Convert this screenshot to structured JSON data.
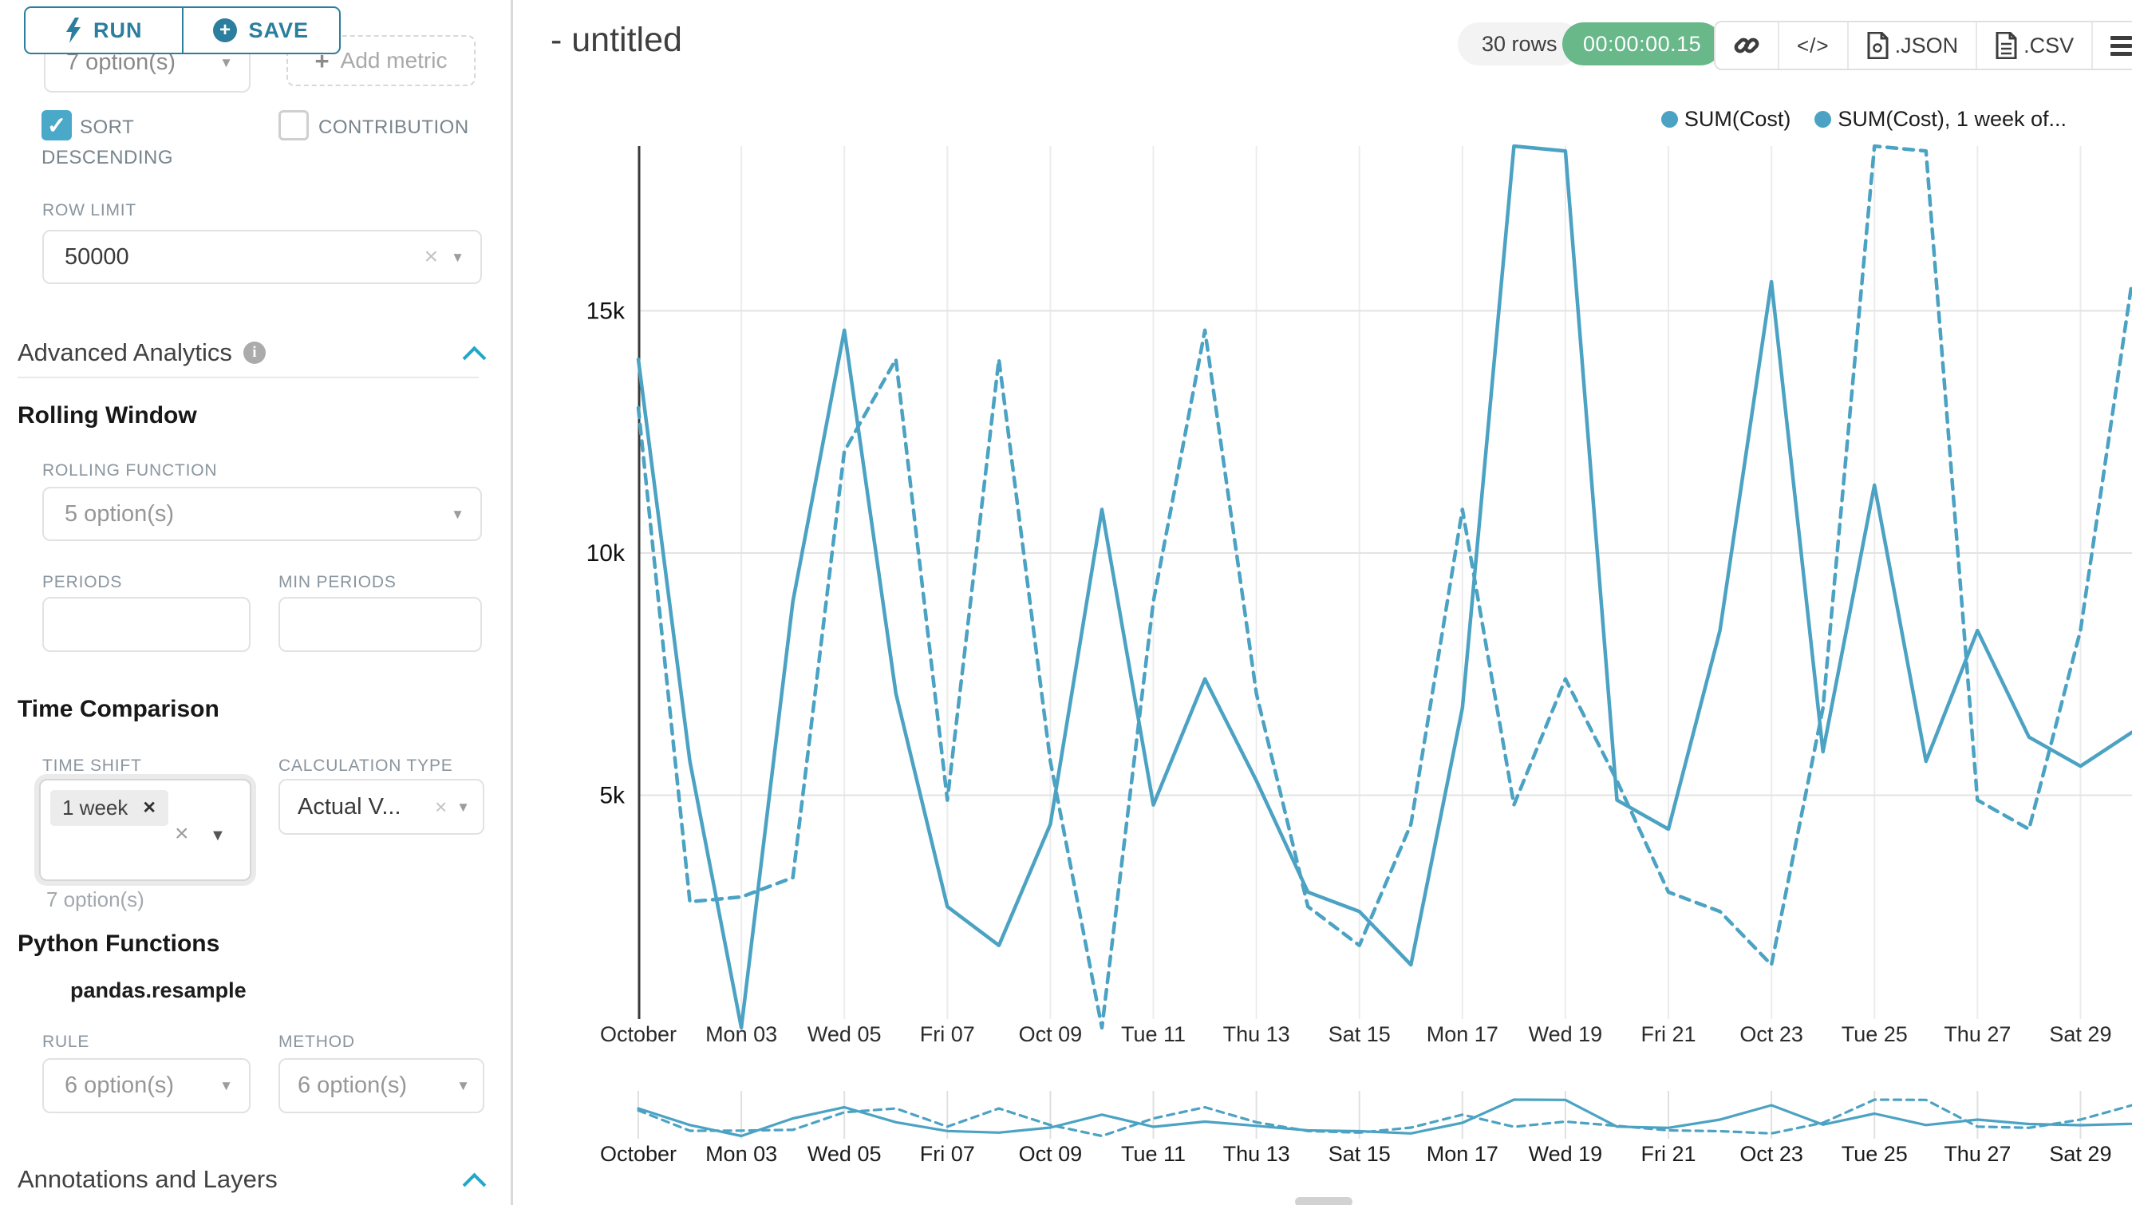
{
  "icons": {
    "caret_down": "▼",
    "clear_x": "×",
    "check": "✓",
    "plus": "+",
    "tag_close": "✕",
    "code": "</>",
    "info": "i",
    "ellipsis_dash": "-"
  },
  "sidebar": {
    "run_label": "RUN",
    "save_label": "SAVE",
    "groupby_value": "7 option(s)",
    "add_metric_label": "Add metric",
    "sort_descending_line1": "SORT",
    "sort_descending_line2": "DESCENDING",
    "sort_descending_checked": true,
    "contribution_label": "CONTRIBUTION",
    "contribution_checked": false,
    "row_limit_label": "ROW LIMIT",
    "row_limit_value": "50000",
    "advanced_analytics_title": "Advanced Analytics",
    "rolling_window_title": "Rolling Window",
    "rolling_function_label": "ROLLING FUNCTION",
    "rolling_function_value": "5 option(s)",
    "periods_label": "PERIODS",
    "periods_value": "",
    "min_periods_label": "MIN PERIODS",
    "min_periods_value": "",
    "time_comparison_title": "Time Comparison",
    "time_shift_label": "TIME SHIFT",
    "time_shift_tag": "1 week",
    "time_shift_hint": "7 option(s)",
    "calculation_type_label": "CALCULATION TYPE",
    "calculation_type_value": "Actual V...",
    "python_functions_title": "Python Functions",
    "pandas_resample_label": "pandas.resample",
    "rule_label": "RULE",
    "rule_value": "6 option(s)",
    "method_label": "METHOD",
    "method_value": "6 option(s)",
    "annotations_title": "Annotations and Layers"
  },
  "header": {
    "title": "- untitled",
    "rows_badge": "30 rows",
    "timer_badge": "00:00:00.15",
    "json_label": ".JSON",
    "csv_label": ".CSV"
  },
  "chart_data": {
    "type": "line",
    "title": "- untitled",
    "x": [
      1,
      2,
      3,
      4,
      5,
      6,
      7,
      8,
      9,
      10,
      11,
      12,
      13,
      14,
      15,
      16,
      17,
      18,
      19,
      20,
      21,
      22,
      23,
      24,
      25,
      26,
      27,
      28,
      29,
      30
    ],
    "x_tick_labels": [
      "October",
      "Mon 03",
      "Wed 05",
      "Fri 07",
      "Oct 09",
      "Tue 11",
      "Thu 13",
      "Sat 15",
      "Mon 17",
      "Wed 19",
      "Fri 21",
      "Oct 23",
      "Tue 25",
      "Thu 27",
      "Sat 29"
    ],
    "series": [
      {
        "name": "SUM(Cost)",
        "line_style": "solid",
        "values": [
          14000,
          5700,
          200,
          9000,
          14600,
          7100,
          2700,
          1900,
          4400,
          10900,
          4800,
          7400,
          5300,
          3000,
          2600,
          1500,
          6800,
          18400,
          18300,
          4900,
          4300,
          8400,
          15600,
          5900,
          11400,
          5700,
          8400,
          6200,
          5600,
          6300
        ]
      },
      {
        "name": "SUM(Cost), 1 week of...",
        "line_style": "dashed",
        "values": [
          13000,
          2800,
          2900,
          3300,
          12100,
          14000,
          4900,
          14000,
          5700,
          200,
          9000,
          14600,
          7100,
          2700,
          1900,
          4400,
          10900,
          4800,
          7400,
          5300,
          3000,
          2600,
          1500,
          6800,
          18400,
          18300,
          4900,
          4300,
          8400,
          15600
        ]
      }
    ],
    "ylim": [
      0,
      18600
    ],
    "yticks": [
      {
        "value": 5000,
        "label": "5k"
      },
      {
        "value": 10000,
        "label": "10k"
      },
      {
        "value": 15000,
        "label": "15k"
      }
    ],
    "grid": true,
    "legend_position": "top-right",
    "line_color": "#4ba2c3",
    "has_mini_timeline": true
  }
}
